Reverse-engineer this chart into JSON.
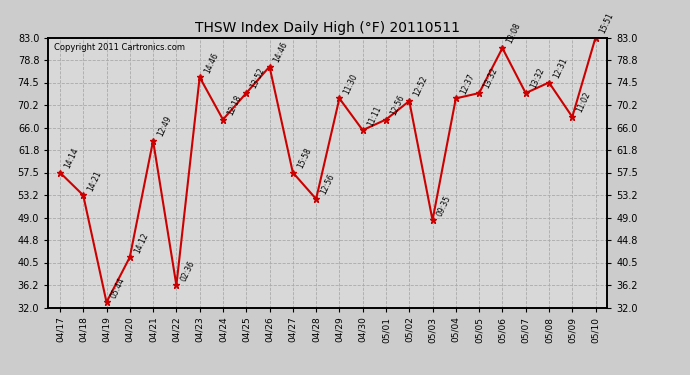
{
  "title": "THSW Index Daily High (°F) 20110511",
  "copyright": "Copyright 2011 Cartronics.com",
  "x_labels": [
    "04/17",
    "04/18",
    "04/19",
    "04/20",
    "04/21",
    "04/22",
    "04/23",
    "04/24",
    "04/25",
    "04/26",
    "04/27",
    "04/28",
    "04/29",
    "04/30",
    "05/01",
    "05/02",
    "05/03",
    "05/04",
    "05/05",
    "05/06",
    "05/07",
    "05/08",
    "05/09",
    "05/10"
  ],
  "y_values": [
    57.5,
    53.2,
    33.0,
    41.5,
    63.5,
    36.2,
    75.5,
    67.5,
    72.5,
    77.5,
    57.5,
    52.5,
    71.5,
    65.5,
    67.5,
    71.0,
    48.5,
    71.5,
    72.5,
    81.0,
    72.5,
    74.5,
    68.0,
    83.0
  ],
  "time_labels": [
    "14:14",
    "14:21",
    "05:44",
    "14:12",
    "12:49",
    "02:36",
    "14:46",
    "12:18",
    "13:52",
    "14:46",
    "15:58",
    "12:56",
    "11:30",
    "11:11",
    "12:56",
    "12:52",
    "09:35",
    "12:37",
    "13:32",
    "13:08",
    "13:32",
    "12:31",
    "11:02",
    "15:51"
  ],
  "line_color": "#cc0000",
  "marker_color": "#cc0000",
  "bg_color": "#cccccc",
  "plot_bg_color": "#d8d8d8",
  "grid_color": "#aaaaaa",
  "y_min": 32.0,
  "y_max": 83.0,
  "y_ticks": [
    32.0,
    36.2,
    40.5,
    44.8,
    49.0,
    53.2,
    57.5,
    61.8,
    66.0,
    70.2,
    74.5,
    78.8,
    83.0
  ]
}
